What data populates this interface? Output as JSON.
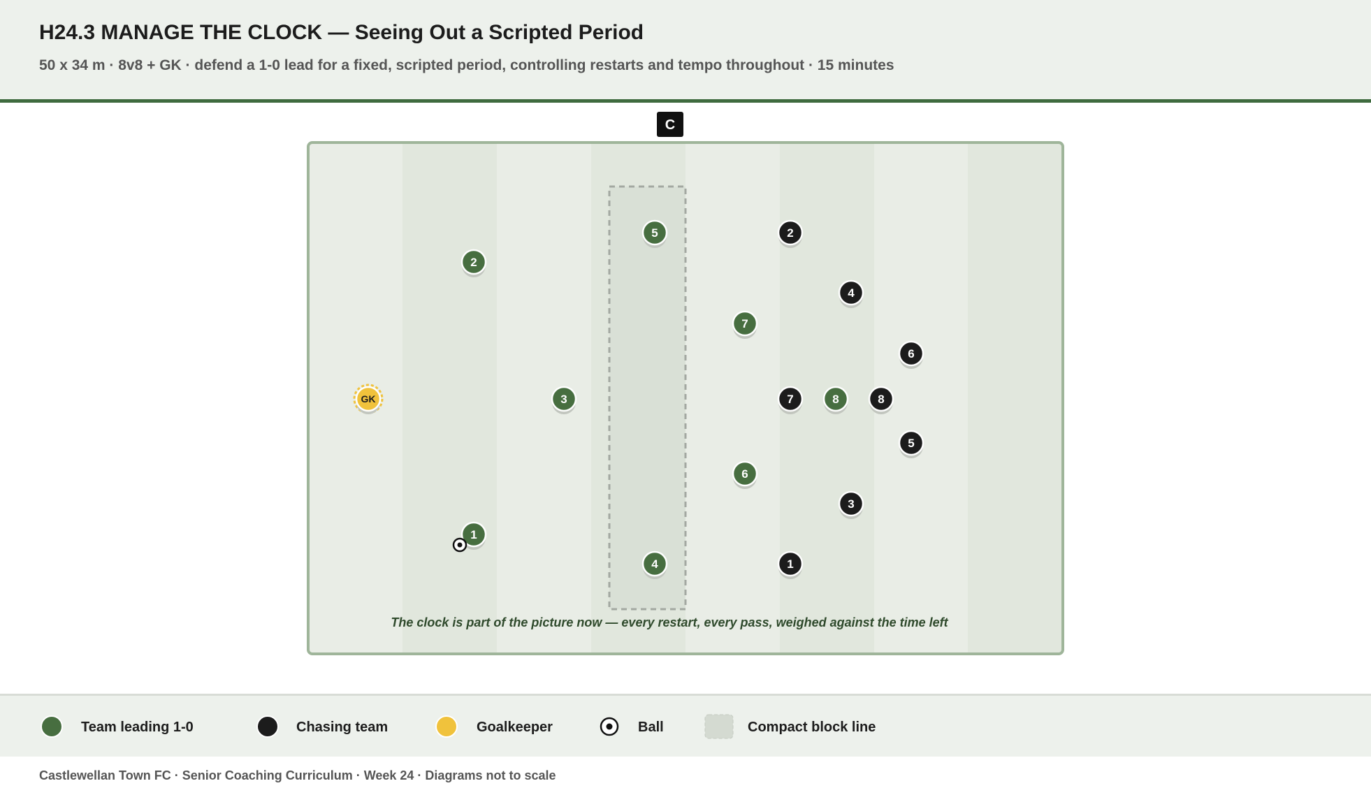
{
  "header": {
    "title": "H24.3 MANAGE THE CLOCK — Seeing Out a Scripted Period",
    "subtitle": "50 x 34 m · 8v8 + GK · defend a 1-0 lead for a fixed, scripted period, controlling restarts and tempo throughout · 15 minutes"
  },
  "coach": "C",
  "pitch": {
    "caption": "The clock is part of the picture now — every restart, every pass, weighed against the time left",
    "green_players": [
      "5",
      "2",
      "7",
      "3",
      "8",
      "6",
      "1",
      "4"
    ],
    "black_players": [
      "2",
      "4",
      "6",
      "7",
      "8",
      "5",
      "3",
      "1"
    ],
    "goalkeeper": "GK"
  },
  "legend": [
    "Team leading 1-0",
    "Chasing team",
    "Goalkeeper",
    "Ball",
    "Compact block line"
  ],
  "footer": "Castlewellan Town FC · Senior Coaching Curriculum · Week 24 · Diagrams not to scale"
}
